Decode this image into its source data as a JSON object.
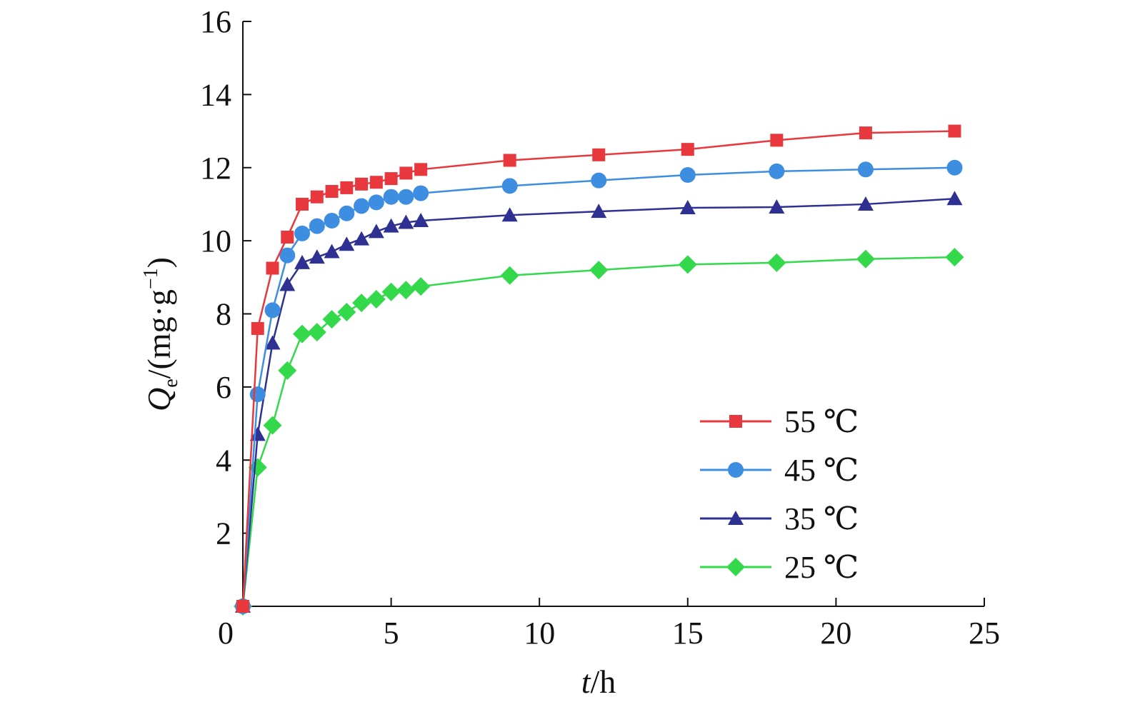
{
  "chart_data": {
    "type": "line",
    "title": "",
    "xlabel": {
      "var": "t",
      "rest": "/h"
    },
    "ylabel": {
      "var": "Q",
      "sub": "e",
      "rest": "/(mg·g",
      "sup": "−1",
      "close": ")"
    },
    "xlim": [
      0,
      25
    ],
    "ylim": [
      0,
      16
    ],
    "x_ticks": [
      0,
      5,
      10,
      15,
      20,
      25
    ],
    "y_ticks": [
      0,
      2,
      4,
      6,
      8,
      10,
      12,
      14,
      16
    ],
    "grid": false,
    "legend_position": "lower-right",
    "x": [
      0,
      0.5,
      1,
      1.5,
      2,
      2.5,
      3,
      3.5,
      4,
      4.5,
      5,
      5.5,
      6,
      9,
      12,
      15,
      18,
      21,
      24
    ],
    "series": [
      {
        "name": "55 ℃",
        "color": "#e8383d",
        "marker": "square",
        "values": [
          0,
          7.6,
          9.25,
          10.1,
          11.0,
          11.2,
          11.35,
          11.45,
          11.55,
          11.6,
          11.7,
          11.85,
          11.95,
          12.2,
          12.35,
          12.5,
          12.75,
          12.95,
          13.0
        ]
      },
      {
        "name": "45 ℃",
        "color": "#3d8ee0",
        "marker": "circle",
        "values": [
          0,
          5.8,
          8.1,
          9.6,
          10.2,
          10.4,
          10.55,
          10.75,
          10.95,
          11.05,
          11.2,
          11.2,
          11.3,
          11.5,
          11.65,
          11.8,
          11.9,
          11.95,
          12.0
        ]
      },
      {
        "name": "35 ℃",
        "color": "#2e3192",
        "marker": "triangle",
        "values": [
          0,
          4.7,
          7.2,
          8.8,
          9.4,
          9.55,
          9.7,
          9.9,
          10.05,
          10.25,
          10.4,
          10.5,
          10.55,
          10.7,
          10.8,
          10.9,
          10.92,
          11.0,
          11.15
        ]
      },
      {
        "name": "25 ℃",
        "color": "#33d94a",
        "marker": "diamond",
        "values": [
          0,
          3.8,
          4.95,
          6.45,
          7.45,
          7.5,
          7.85,
          8.05,
          8.3,
          8.4,
          8.6,
          8.65,
          8.75,
          9.05,
          9.2,
          9.35,
          9.4,
          9.5,
          9.55
        ]
      }
    ]
  }
}
